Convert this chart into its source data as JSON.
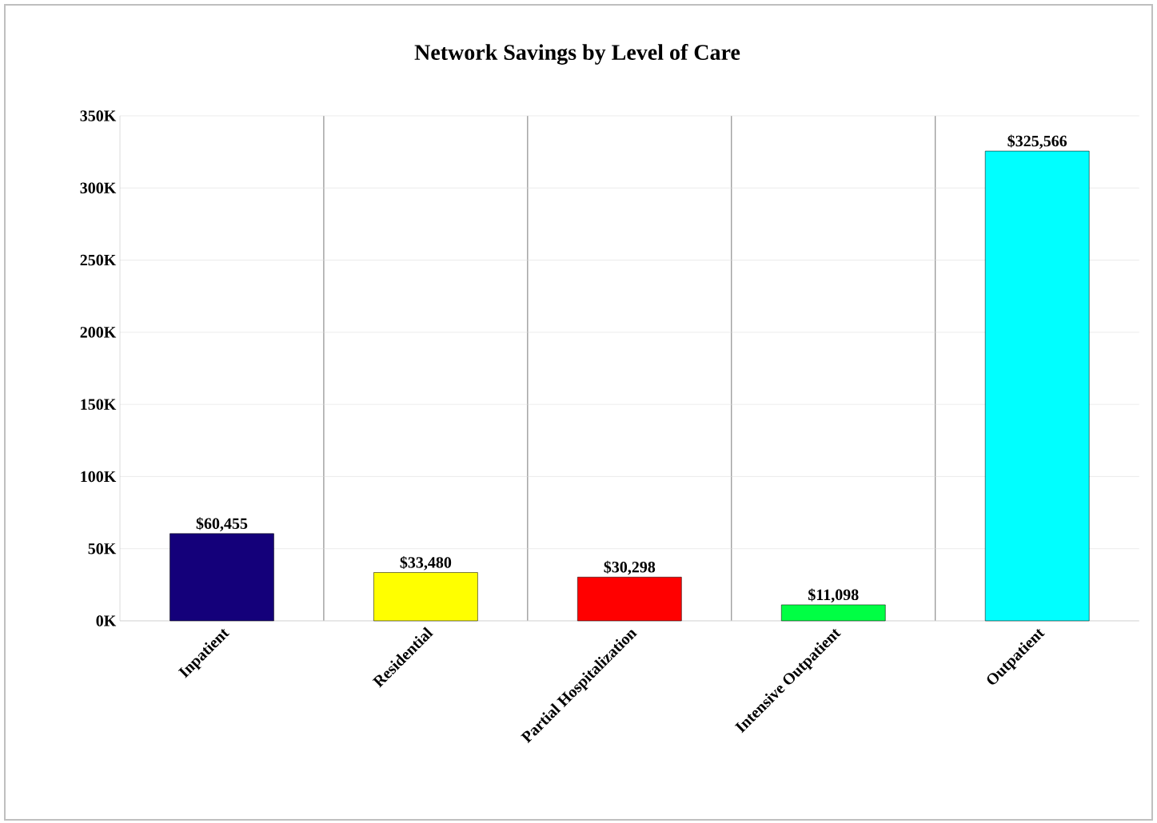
{
  "chart_data": {
    "type": "bar",
    "title": "Network Savings by Level of Care",
    "categories": [
      "Inpatient",
      "Residential",
      "Partial Hospitalization",
      "Intensive Outpatient",
      "Outpatient"
    ],
    "values": [
      60455,
      33480,
      30298,
      11098,
      325566
    ],
    "colors": [
      "#14007a",
      "#ffff00",
      "#ff0000",
      "#00ff44",
      "#00ffff"
    ],
    "value_labels": [
      "$60,455",
      "$33,480",
      "$30,298",
      "$11,098",
      "$325,566"
    ],
    "ylim": [
      0,
      350000
    ],
    "yticks": [
      {
        "value": 0,
        "label": "0K"
      },
      {
        "value": 50000,
        "label": "50K"
      },
      {
        "value": 100000,
        "label": "100K"
      },
      {
        "value": 150000,
        "label": "150K"
      },
      {
        "value": 200000,
        "label": "200K"
      },
      {
        "value": 250000,
        "label": "250K"
      },
      {
        "value": 300000,
        "label": "300K"
      },
      {
        "value": 350000,
        "label": "350K"
      }
    ],
    "grid": true
  }
}
